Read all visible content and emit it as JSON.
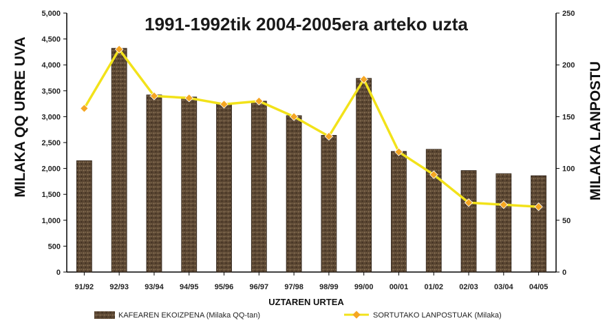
{
  "chart_data": {
    "type": "bar",
    "title": "1991-1992tik 2004-2005era arteko uzta",
    "xlabel": "UZTAREN URTEA",
    "ylabel": "MILAKA QQ URRE UVA",
    "y2label": "MILAKA LANPOSTU",
    "categories": [
      "91/92",
      "92/93",
      "93/94",
      "94/95",
      "95/96",
      "96/97",
      "97/98",
      "98/99",
      "99/00",
      "00/01",
      "01/02",
      "02/03",
      "03/04",
      "04/05"
    ],
    "ylim": [
      0,
      5000
    ],
    "yticks": [
      "0",
      "500",
      "1,000",
      "1,500",
      "2,000",
      "2,500",
      "3,000",
      "3,500",
      "4,000",
      "4,500",
      "5,000"
    ],
    "y2lim": [
      0,
      250
    ],
    "y2ticks": [
      "0",
      "50",
      "100",
      "150",
      "200",
      "250"
    ],
    "grid": false,
    "legend_position": "bottom",
    "series": [
      {
        "name": "KAFEAREN EKOIZPENA (Milaka QQ-tan)",
        "type": "bar",
        "axis": "left",
        "color": "#5a4632",
        "values": [
          2150,
          4320,
          3420,
          3380,
          3260,
          3300,
          3020,
          2640,
          3740,
          2330,
          2370,
          1960,
          1900,
          1860
        ]
      },
      {
        "name": "SORTUTAKO LANPOSTUAK (Milaka)",
        "type": "line",
        "axis": "right",
        "color": "#f2e21a",
        "marker_color": "#f5a623",
        "values": [
          158,
          215,
          170,
          168,
          162,
          165,
          150,
          131,
          186,
          116,
          94,
          67,
          65,
          63
        ]
      }
    ]
  }
}
